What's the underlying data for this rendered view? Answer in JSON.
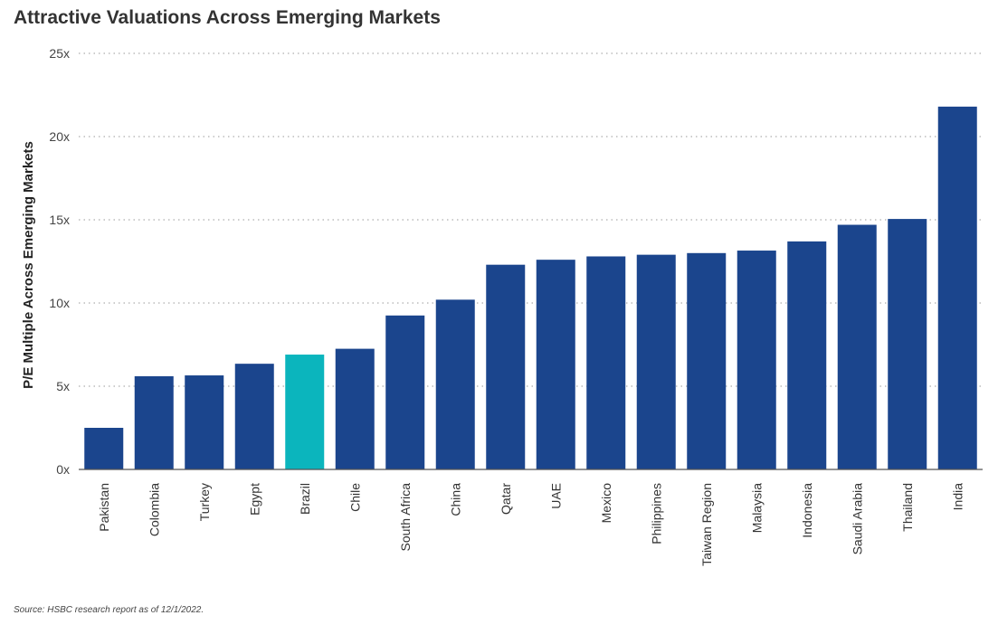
{
  "title": "Attractive Valuations Across Emerging Markets",
  "source": "Source: HSBC research report as of 12/1/2022.",
  "colors": {
    "bar": "#1b458d",
    "highlight": "#0bb5bd",
    "grid": "#999999",
    "axis": "#555555"
  },
  "chart_data": {
    "type": "bar",
    "title": "Attractive Valuations Across Emerging Markets",
    "xlabel": "",
    "ylabel": "P/E Multiple Across Emerging Markets",
    "ylim": [
      0,
      25
    ],
    "yticks": [
      "0x",
      "5x",
      "10x",
      "15x",
      "20x",
      "25x"
    ],
    "grid": "horizontal dotted",
    "highlight": "Brazil",
    "categories": [
      "Pakistan",
      "Colombia",
      "Turkey",
      "Egypt",
      "Brazil",
      "Chile",
      "South Africa",
      "China",
      "Qatar",
      "UAE",
      "Mexico",
      "Philippines",
      "Taiwan Region",
      "Malaysia",
      "Indonesia",
      "Saudi Arabia",
      "Thailand",
      "India"
    ],
    "values": [
      2.5,
      5.6,
      5.65,
      6.35,
      6.9,
      7.25,
      9.25,
      10.2,
      12.3,
      12.6,
      12.8,
      12.9,
      13.0,
      13.15,
      13.7,
      14.7,
      15.05,
      21.8
    ]
  }
}
